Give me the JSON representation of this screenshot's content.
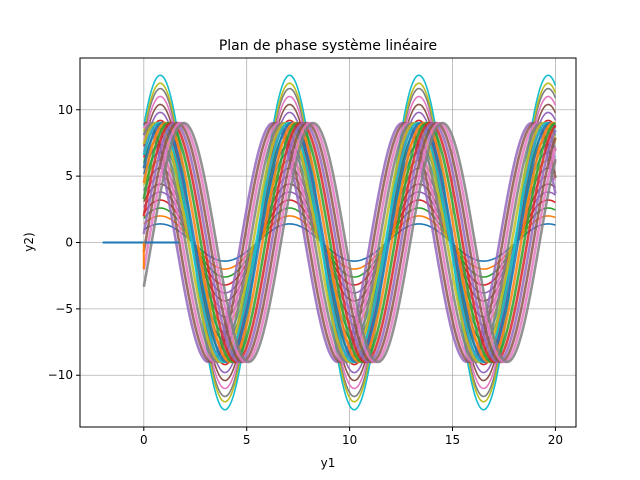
{
  "chart_data": {
    "type": "line",
    "title": "Plan de phase système linéaire",
    "xlabel": "y1",
    "ylabel": "y2)",
    "xlim": [
      -3.1,
      21.0
    ],
    "ylim": [
      -13.9,
      13.9
    ],
    "xticks": [
      0,
      5,
      10,
      15,
      20
    ],
    "yticks": [
      -10,
      -5,
      0,
      5,
      10
    ],
    "xtick_labels": [
      "0",
      "5",
      "10",
      "15",
      "20"
    ],
    "ytick_labels": [
      "−10",
      "−5",
      "0",
      "5",
      "10"
    ],
    "grid": true,
    "legend": "none",
    "palette": [
      "#1f77b4",
      "#ff7f0e",
      "#2ca02c",
      "#d62728",
      "#9467bd",
      "#8c564b",
      "#e377c2",
      "#7f7f7f",
      "#bcbd22",
      "#17becf"
    ],
    "series": [
      {
        "color": "#1f77b4",
        "x": [
          -2,
          1.7
        ],
        "y": [
          0,
          0
        ]
      },
      {
        "color": "#ff7f0e",
        "x": [
          0,
          0
        ],
        "y": [
          -2,
          0
        ]
      },
      {
        "equation": "y = A*cos(x - phi)",
        "x_range": [
          0,
          20
        ],
        "amplitudes": [
          1.4,
          2.0,
          2.6,
          3.2,
          3.8,
          4.4,
          5.0,
          5.6,
          6.2,
          6.8,
          7.4,
          8.0,
          8.6,
          9.2,
          9.8,
          10.4,
          11.0,
          11.6,
          12.0,
          12.6
        ],
        "phases": [
          0.8,
          0.8,
          0.8,
          0.8,
          0.8,
          0.8,
          0.8,
          0.8,
          0.8,
          0.8,
          0.8,
          0.8,
          0.8,
          0.8,
          0.8,
          0.8,
          0.8,
          0.8,
          0.8,
          0.8
        ]
      },
      {
        "equation": "y = 9*cos(x - phi)",
        "x_range": [
          0,
          20
        ],
        "phases": [
          0.0,
          0.15,
          0.3,
          0.45,
          0.6,
          0.75,
          0.9,
          1.05,
          1.2,
          1.35,
          1.5,
          1.65,
          1.8,
          1.95
        ]
      }
    ]
  }
}
